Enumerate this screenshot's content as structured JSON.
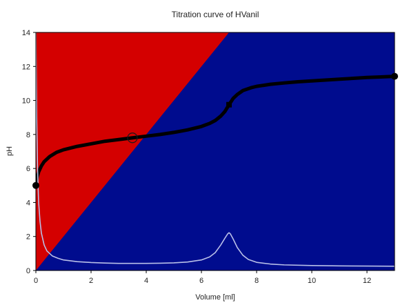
{
  "chart_data": {
    "type": "line",
    "title": "Titration curve of HVanil",
    "xlabel": "Volume [ml]",
    "ylabel": "pH",
    "xlim": [
      0,
      13
    ],
    "ylim": [
      0,
      14
    ],
    "xticks": [
      0,
      2,
      4,
      6,
      8,
      10,
      12
    ],
    "yticks": [
      0,
      2,
      4,
      6,
      8,
      10,
      12,
      14
    ],
    "grid": false,
    "legend": "none",
    "background": {
      "boundary_line": [
        [
          0,
          0
        ],
        [
          7,
          14
        ]
      ],
      "upper_left_color": "#d40000",
      "lower_right_color": "#000c8e"
    },
    "series": [
      {
        "color": "#000000",
        "style": "thick",
        "x": [
          0,
          0.05,
          0.1,
          0.2,
          0.3,
          0.5,
          0.75,
          1.0,
          1.5,
          2.0,
          2.5,
          3.0,
          3.5,
          4.0,
          4.5,
          5.0,
          5.5,
          6.0,
          6.3,
          6.5,
          6.7,
          6.85,
          7.0,
          7.15,
          7.3,
          7.5,
          7.8,
          8.0,
          8.5,
          9.0,
          9.5,
          10.0,
          10.5,
          11.0,
          11.5,
          12.0,
          12.5,
          13.0
        ],
        "y": [
          5.0,
          5.5,
          5.8,
          6.15,
          6.4,
          6.7,
          6.95,
          7.1,
          7.3,
          7.45,
          7.6,
          7.7,
          7.8,
          7.9,
          8.0,
          8.12,
          8.27,
          8.47,
          8.65,
          8.82,
          9.08,
          9.35,
          9.75,
          10.12,
          10.35,
          10.58,
          10.75,
          10.83,
          10.95,
          11.03,
          11.1,
          11.15,
          11.2,
          11.25,
          11.3,
          11.35,
          11.38,
          11.42
        ]
      },
      {
        "color": "#b9c0e8",
        "style": "thin",
        "x": [
          0,
          0.03,
          0.06,
          0.1,
          0.15,
          0.2,
          0.3,
          0.4,
          0.6,
          0.8,
          1.0,
          1.5,
          2.0,
          2.5,
          3.0,
          3.5,
          4.0,
          4.5,
          5.0,
          5.5,
          6.0,
          6.3,
          6.5,
          6.7,
          6.85,
          6.95,
          7.0,
          7.05,
          7.15,
          7.3,
          7.5,
          7.7,
          8.0,
          8.5,
          9.0,
          10.0,
          11.0,
          12.0,
          13.0
        ],
        "y": [
          14.0,
          9.0,
          6.0,
          4.0,
          2.9,
          2.2,
          1.5,
          1.15,
          0.85,
          0.72,
          0.62,
          0.52,
          0.47,
          0.44,
          0.42,
          0.42,
          0.42,
          0.43,
          0.45,
          0.5,
          0.62,
          0.8,
          1.05,
          1.5,
          1.9,
          2.15,
          2.22,
          2.15,
          1.85,
          1.35,
          0.9,
          0.65,
          0.48,
          0.38,
          0.33,
          0.29,
          0.27,
          0.26,
          0.25
        ]
      }
    ],
    "markers": [
      {
        "x": 0,
        "y": 5.0,
        "shape": "filled-circle"
      },
      {
        "x": 13.0,
        "y": 11.42,
        "shape": "filled-circle"
      },
      {
        "x": 3.5,
        "y": 7.8,
        "shape": "open-circle"
      },
      {
        "x": 7.0,
        "y": 9.75,
        "shape": "filled-square"
      }
    ]
  }
}
